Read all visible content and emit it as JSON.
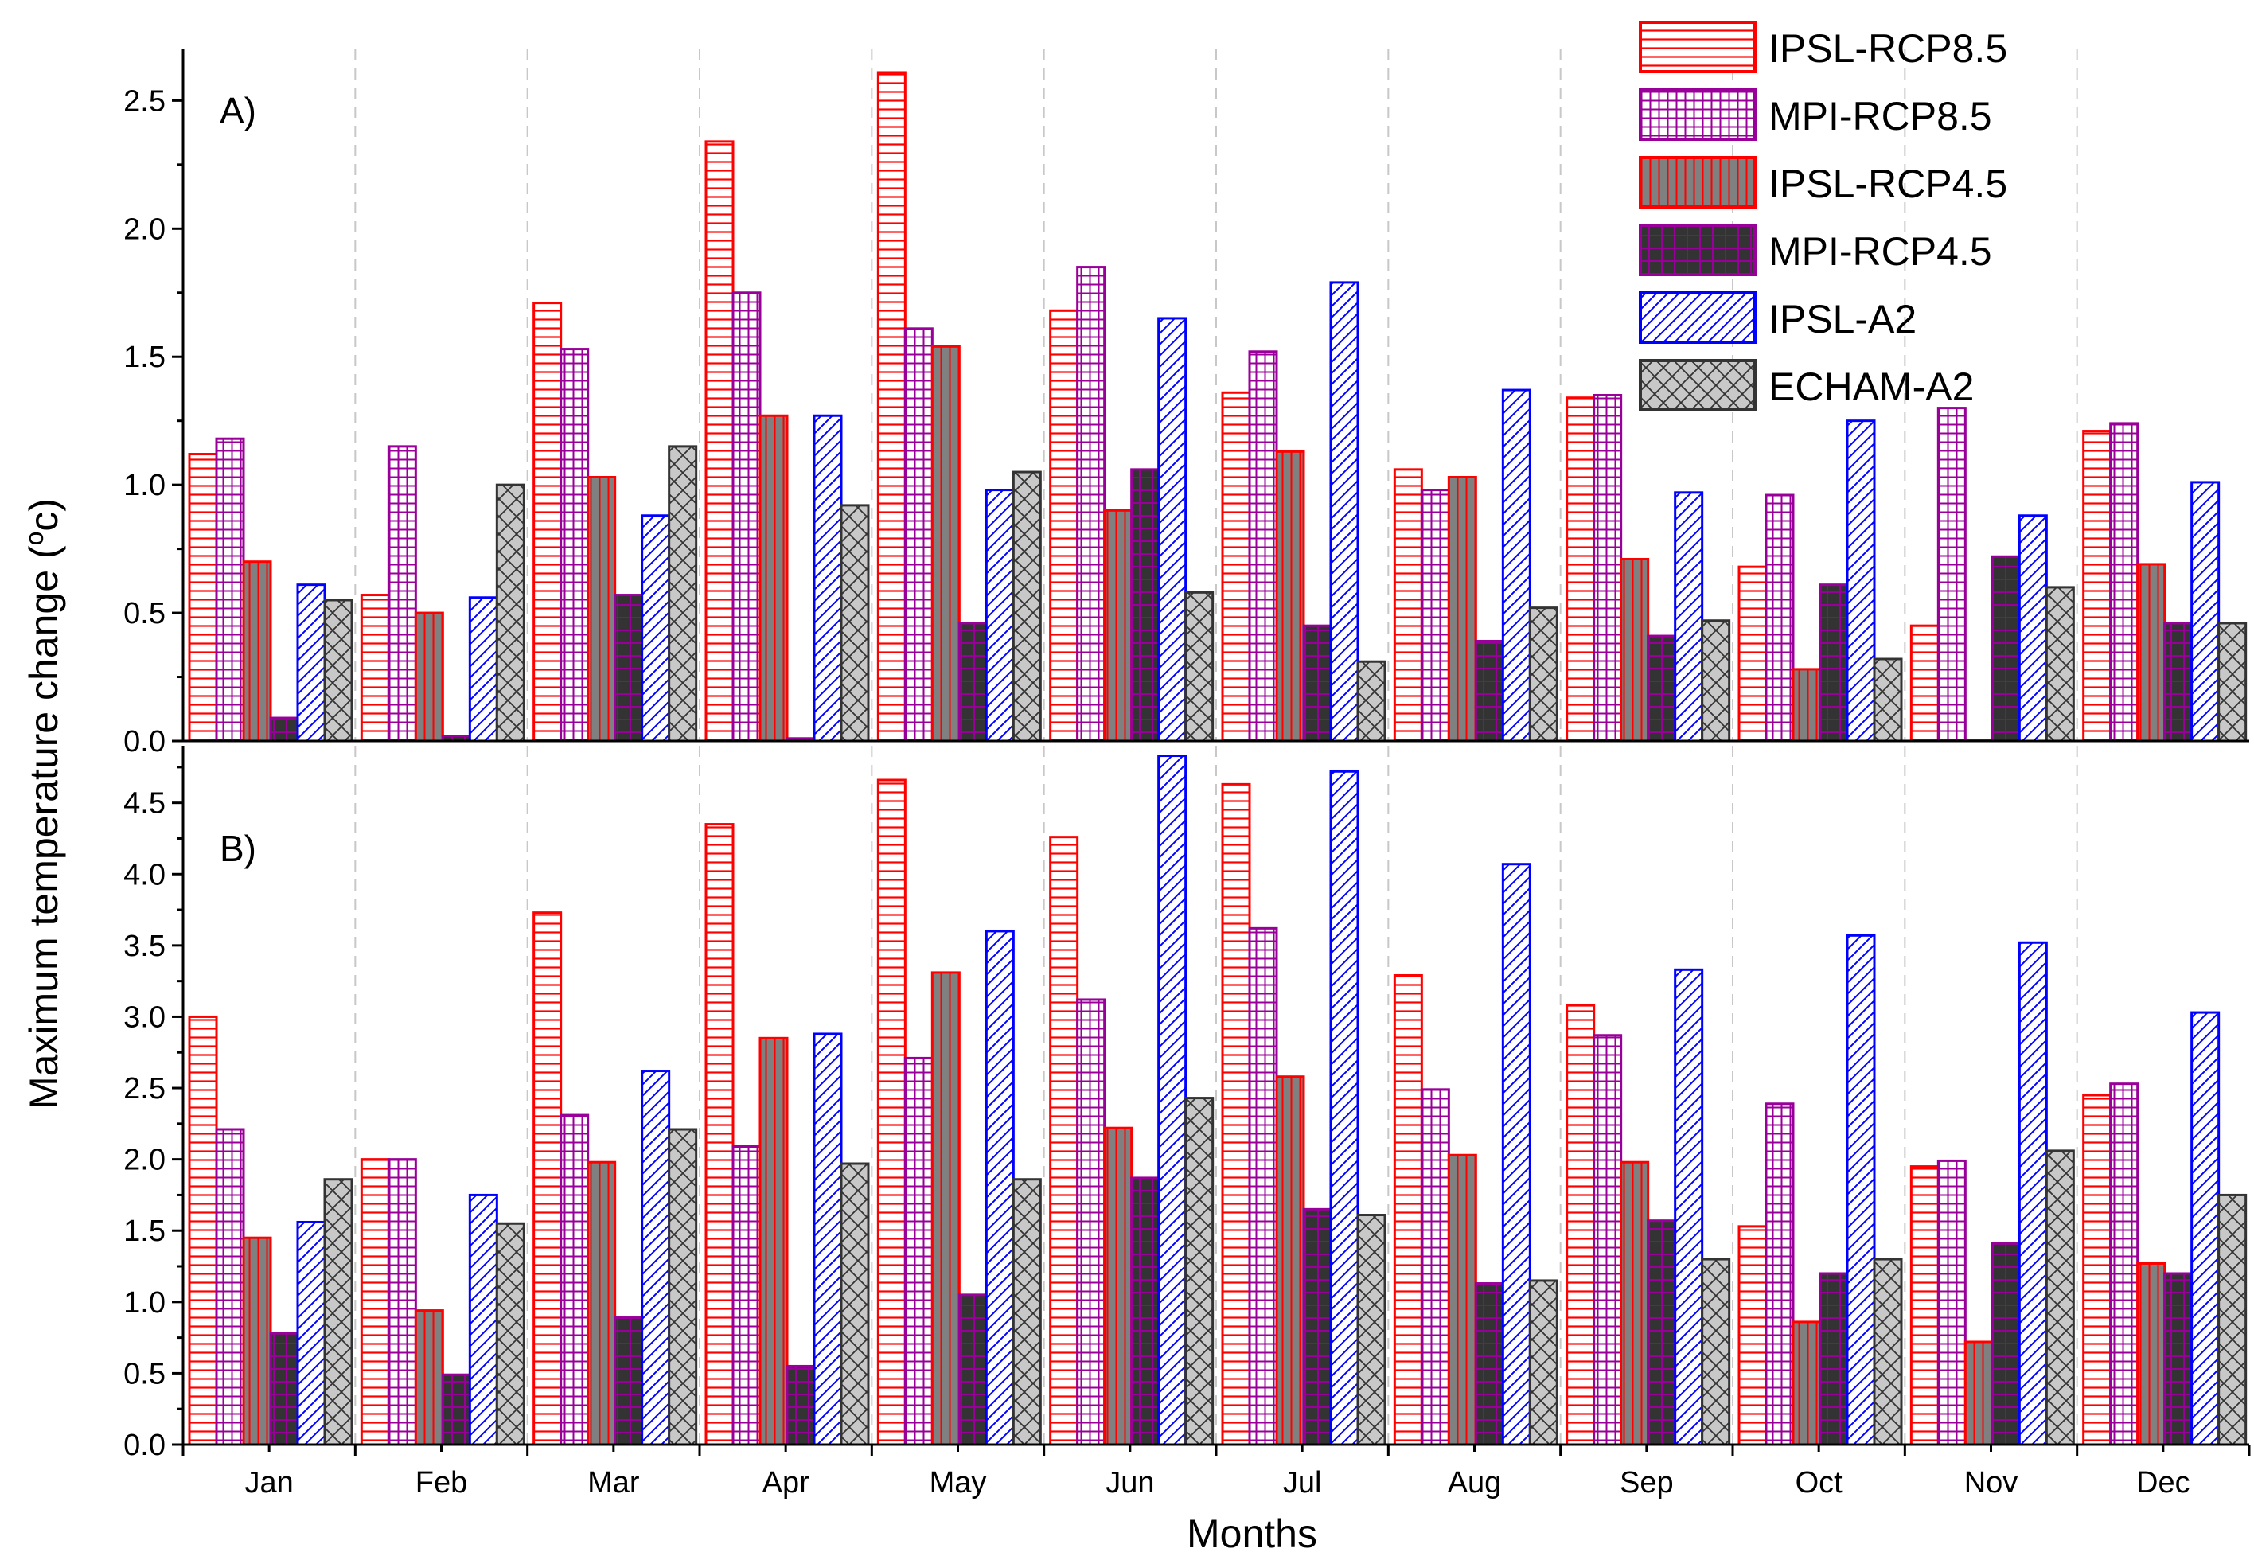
{
  "chart_data": {
    "type": "bar",
    "xlabel": "Months",
    "ylabel": "Maximum temperature change (°c)",
    "ylabel_main": "Maximum temperature change (",
    "ylabel_sup": "o",
    "ylabel_tail": "c)",
    "categories": [
      "Jan",
      "Feb",
      "Mar",
      "Apr",
      "May",
      "Jun",
      "Jul",
      "Aug",
      "Sep",
      "Oct",
      "Nov",
      "Dec"
    ],
    "legend": [
      {
        "name": "IPSL-RCP8.5",
        "edge": "#ff0000",
        "fill": "#ffffff",
        "pattern": "hlines",
        "pattern_color": "#ff0000"
      },
      {
        "name": "MPI-RCP8.5",
        "edge": "#990099",
        "fill": "#ffffff",
        "pattern": "grid",
        "pattern_color": "#990099"
      },
      {
        "name": "IPSL-RCP4.5",
        "edge": "#ff0000",
        "fill": "#808080",
        "pattern": "vlines",
        "pattern_color": "#ff0000"
      },
      {
        "name": "MPI-RCP4.5",
        "edge": "#990099",
        "fill": "#333333",
        "pattern": "grid",
        "pattern_color": "#990099"
      },
      {
        "name": "IPSL-A2",
        "edge": "#0000ff",
        "fill": "#ffffff",
        "pattern": "diag",
        "pattern_color": "#0000ff"
      },
      {
        "name": "ECHAM-A2",
        "edge": "#333333",
        "fill": "#c8c8c8",
        "pattern": "cross",
        "pattern_color": "#333333"
      }
    ],
    "panels": [
      {
        "label": "A)",
        "ylim": [
          0,
          2.7
        ],
        "yticks": [
          "0.0",
          "0.5",
          "1.0",
          "1.5",
          "2.0",
          "2.5"
        ],
        "series": [
          {
            "name": "IPSL-RCP8.5",
            "values": [
              1.12,
              0.57,
              1.71,
              2.34,
              2.61,
              1.68,
              1.36,
              1.06,
              1.34,
              0.68,
              0.45,
              1.21
            ]
          },
          {
            "name": "MPI-RCP8.5",
            "values": [
              1.18,
              1.15,
              1.53,
              1.75,
              1.61,
              1.85,
              1.52,
              0.98,
              1.35,
              0.96,
              1.3,
              1.24
            ]
          },
          {
            "name": "IPSL-RCP4.5",
            "values": [
              0.7,
              0.5,
              1.03,
              1.27,
              1.54,
              0.9,
              1.13,
              1.03,
              0.71,
              0.28,
              0.0,
              0.69
            ]
          },
          {
            "name": "MPI-RCP4.5",
            "values": [
              0.09,
              0.02,
              0.57,
              0.01,
              0.46,
              1.06,
              0.45,
              0.39,
              0.41,
              0.61,
              0.72,
              0.46
            ]
          },
          {
            "name": "IPSL-A2",
            "values": [
              0.61,
              0.56,
              0.88,
              1.27,
              0.98,
              1.65,
              1.79,
              1.37,
              0.97,
              1.25,
              0.88,
              1.01
            ]
          },
          {
            "name": "ECHAM-A2",
            "values": [
              0.55,
              1.0,
              1.15,
              0.92,
              1.05,
              0.58,
              0.31,
              0.52,
              0.47,
              0.32,
              0.6,
              0.46
            ]
          }
        ]
      },
      {
        "label": "B)",
        "ylim": [
          0,
          4.9
        ],
        "yticks": [
          "0.0",
          "0.5",
          "1.0",
          "1.5",
          "2.0",
          "2.5",
          "3.0",
          "3.5",
          "4.0",
          "4.5"
        ],
        "series": [
          {
            "name": "IPSL-RCP8.5",
            "values": [
              3.0,
              2.0,
              3.73,
              4.35,
              4.66,
              4.26,
              4.63,
              3.29,
              3.08,
              1.53,
              1.95,
              2.45
            ]
          },
          {
            "name": "MPI-RCP8.5",
            "values": [
              2.21,
              2.0,
              2.31,
              2.09,
              2.71,
              3.12,
              3.62,
              2.49,
              2.87,
              2.39,
              1.99,
              2.53
            ]
          },
          {
            "name": "IPSL-RCP4.5",
            "values": [
              1.45,
              0.94,
              1.98,
              2.85,
              3.31,
              2.22,
              2.58,
              2.03,
              1.98,
              0.86,
              0.72,
              1.27
            ]
          },
          {
            "name": "MPI-RCP4.5",
            "values": [
              0.78,
              0.49,
              0.89,
              0.55,
              1.05,
              1.87,
              1.65,
              1.13,
              1.57,
              1.2,
              1.41,
              1.2
            ]
          },
          {
            "name": "IPSL-A2",
            "values": [
              1.56,
              1.75,
              2.62,
              2.88,
              3.6,
              4.83,
              4.72,
              4.07,
              3.33,
              3.57,
              3.52,
              3.03
            ]
          },
          {
            "name": "ECHAM-A2",
            "values": [
              1.86,
              1.55,
              2.21,
              1.97,
              1.86,
              2.43,
              1.61,
              1.15,
              1.3,
              1.3,
              2.06,
              1.75
            ]
          }
        ]
      }
    ]
  }
}
